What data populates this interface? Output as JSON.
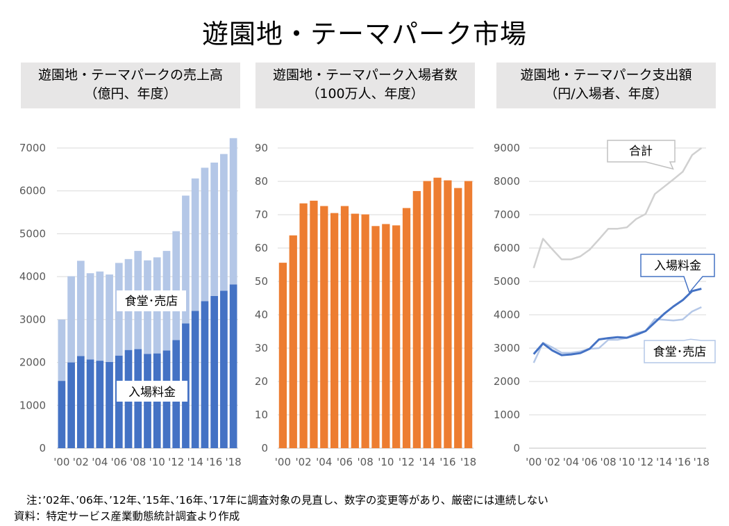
{
  "title": "遊園地・テーマパーク市場",
  "note": "注：’02年、’06年、’12年、’15年、’16年、’17年に調査対象の見直し、数字の変更等があり、厳密には連続しない",
  "source": "資料：特定サービス産業動態統計調査より作成",
  "colors": {
    "entrance": "#4472c4",
    "food": "#b4c7e7",
    "visitors": "#ed7d31",
    "total": "#d0d0d0",
    "title_bg": "#e7e6e6"
  },
  "chart_data": [
    {
      "type": "bar",
      "stacked": true,
      "title_line1": "遊園地・テーマパークの売上高",
      "title_line2": "（億円、年度）",
      "x_tick_labels": [
        "'00",
        "'02",
        "'04",
        "'06",
        "'08",
        "'10",
        "'12",
        "'14",
        "'16",
        "'18"
      ],
      "categories": [
        "2000",
        "2001",
        "2002",
        "2003",
        "2004",
        "2005",
        "2006",
        "2007",
        "2008",
        "2009",
        "2010",
        "2011",
        "2012",
        "2013",
        "2014",
        "2015",
        "2016",
        "2017",
        "2018"
      ],
      "ylim": [
        0,
        7000
      ],
      "yticks": [
        0,
        1000,
        2000,
        3000,
        4000,
        5000,
        6000,
        7000
      ],
      "series": [
        {
          "name": "入場料金",
          "values": [
            1570,
            2000,
            2150,
            2070,
            2040,
            2010,
            2160,
            2290,
            2310,
            2200,
            2210,
            2280,
            2520,
            2910,
            3200,
            3430,
            3550,
            3670,
            3820
          ]
        },
        {
          "name": "食堂･売店",
          "values": [
            1430,
            2010,
            2220,
            2010,
            2080,
            2040,
            2160,
            2120,
            2290,
            2180,
            2240,
            2320,
            2540,
            2980,
            3090,
            3110,
            3110,
            3190,
            3410
          ]
        }
      ],
      "annotations": [
        "食堂･売店",
        "入場料金"
      ]
    },
    {
      "type": "bar",
      "title_line1": "遊園地・テーマパーク入場者数",
      "title_line2": "（100万人、年度）",
      "x_tick_labels": [
        "'00",
        "'02",
        "'04",
        "'06",
        "'08",
        "'10",
        "'12",
        "'14",
        "'16",
        "'18"
      ],
      "categories": [
        "2000",
        "2001",
        "2002",
        "2003",
        "2004",
        "2005",
        "2006",
        "2007",
        "2008",
        "2009",
        "2010",
        "2011",
        "2012",
        "2013",
        "2014",
        "2015",
        "2016",
        "2017",
        "2018"
      ],
      "ylim": [
        0,
        90
      ],
      "yticks": [
        0,
        10,
        20,
        30,
        40,
        50,
        60,
        70,
        80,
        90
      ],
      "values": [
        55.6,
        63.8,
        73.4,
        74.2,
        72.6,
        70.5,
        72.6,
        70.3,
        70.1,
        66.6,
        67.2,
        66.8,
        72.0,
        77.1,
        80.1,
        81.1,
        80.3,
        78.0,
        80.1
      ]
    },
    {
      "type": "line",
      "title_line1": "遊園地・テーマパーク支出額",
      "title_line2": "（円/入場者、年度）",
      "x_tick_labels": [
        "'00",
        "'02",
        "'04",
        "'06",
        "'08",
        "'10",
        "'12",
        "'14",
        "'16",
        "'18"
      ],
      "categories": [
        "2000",
        "2001",
        "2002",
        "2003",
        "2004",
        "2005",
        "2006",
        "2007",
        "2008",
        "2009",
        "2010",
        "2011",
        "2012",
        "2013",
        "2014",
        "2015",
        "2016",
        "2017",
        "2018"
      ],
      "ylim": [
        0,
        9000
      ],
      "yticks": [
        0,
        1000,
        2000,
        3000,
        4000,
        5000,
        6000,
        7000,
        8000,
        9000
      ],
      "series": [
        {
          "name": "合計",
          "values": [
            5400,
            6280,
            5960,
            5660,
            5660,
            5750,
            5950,
            6260,
            6580,
            6580,
            6620,
            6870,
            7020,
            7620,
            7840,
            8060,
            8290,
            8790,
            9000
          ]
        },
        {
          "name": "入場料金",
          "values": [
            2820,
            3140,
            2930,
            2790,
            2810,
            2850,
            2980,
            3260,
            3300,
            3330,
            3310,
            3400,
            3510,
            3770,
            4030,
            4250,
            4440,
            4710,
            4780
          ]
        },
        {
          "name": "食堂･売店",
          "values": [
            2560,
            3160,
            3020,
            2860,
            2860,
            2900,
            2980,
            3000,
            3250,
            3250,
            3310,
            3450,
            3510,
            3870,
            3850,
            3830,
            3860,
            4100,
            4230
          ]
        }
      ],
      "annotations": [
        "合計",
        "入場料金",
        "食堂･売店"
      ]
    }
  ]
}
